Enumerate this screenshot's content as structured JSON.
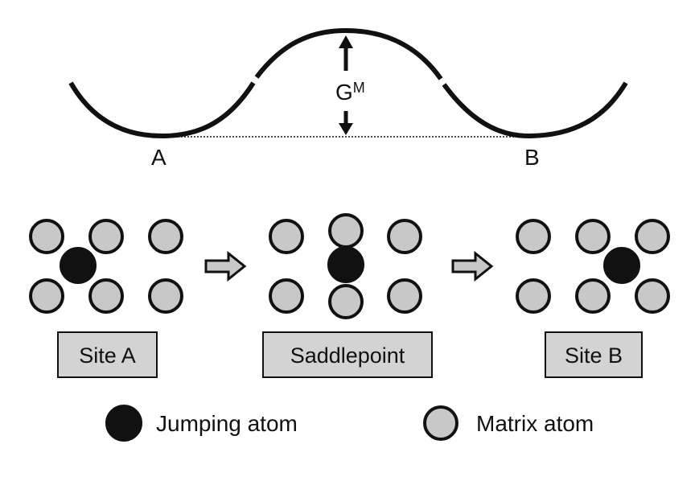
{
  "energy_profile": {
    "start_label": "A",
    "end_label": "B",
    "barrier_label_main": "G",
    "barrier_label_sup": "M"
  },
  "stages": [
    {
      "label": "Site A"
    },
    {
      "label": "Saddlepoint"
    },
    {
      "label": "Site B"
    }
  ],
  "legend": {
    "jumping": "Jumping atom",
    "matrix": "Matrix atom"
  },
  "colors": {
    "line": "#111111",
    "matrix_fill": "#c8c8c8",
    "jumping_fill": "#111111",
    "box_fill": "#d3d3d3",
    "arrow_fill": "#c8c8c8"
  }
}
